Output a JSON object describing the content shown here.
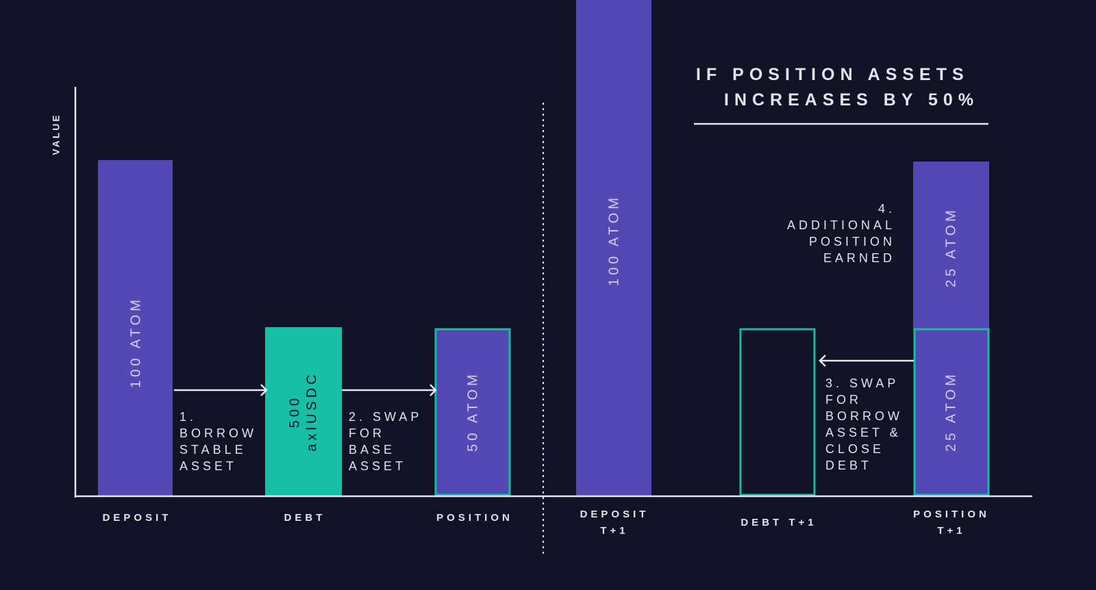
{
  "colors": {
    "background": "#111226",
    "atom": "#5249b4",
    "stable": "#16bfa6",
    "outline": "#1cb8a4",
    "axis": "#e6e6ee",
    "text": "#e4e4ec",
    "label_text": "#d3d2ea"
  },
  "axis": {
    "y_label": "VALUE"
  },
  "heading": {
    "line1": "IF POSITION ASSETS",
    "line2": "INCREASES BY 50%"
  },
  "bars": {
    "deposit": "100 ATOM",
    "debt_amount": "500",
    "debt_asset": "axlUSDC",
    "position": "50 ATOM",
    "deposit_t1": "100 ATOM",
    "position_t1_top": "25 ATOM",
    "position_t1_bottom": "25 ATOM"
  },
  "categories": {
    "deposit": "DEPOSIT",
    "debt": "DEBT",
    "position": "POSITION",
    "deposit_t1": [
      "DEPOSIT",
      "T+1"
    ],
    "debt_t1": "DEBT T+1",
    "position_t1": [
      "POSITION",
      "T+1"
    ]
  },
  "steps": {
    "step1": [
      "1.",
      "BORROW",
      "STABLE",
      "ASSET"
    ],
    "step2": [
      "2. SWAP",
      "FOR",
      "BASE",
      "ASSET"
    ],
    "step3": [
      "3. SWAP",
      "FOR",
      "BORROW",
      "ASSET &",
      "CLOSE",
      "DEBT"
    ],
    "step4": [
      "4.",
      "ADDITIONAL",
      "POSITION",
      "EARNED"
    ]
  }
}
